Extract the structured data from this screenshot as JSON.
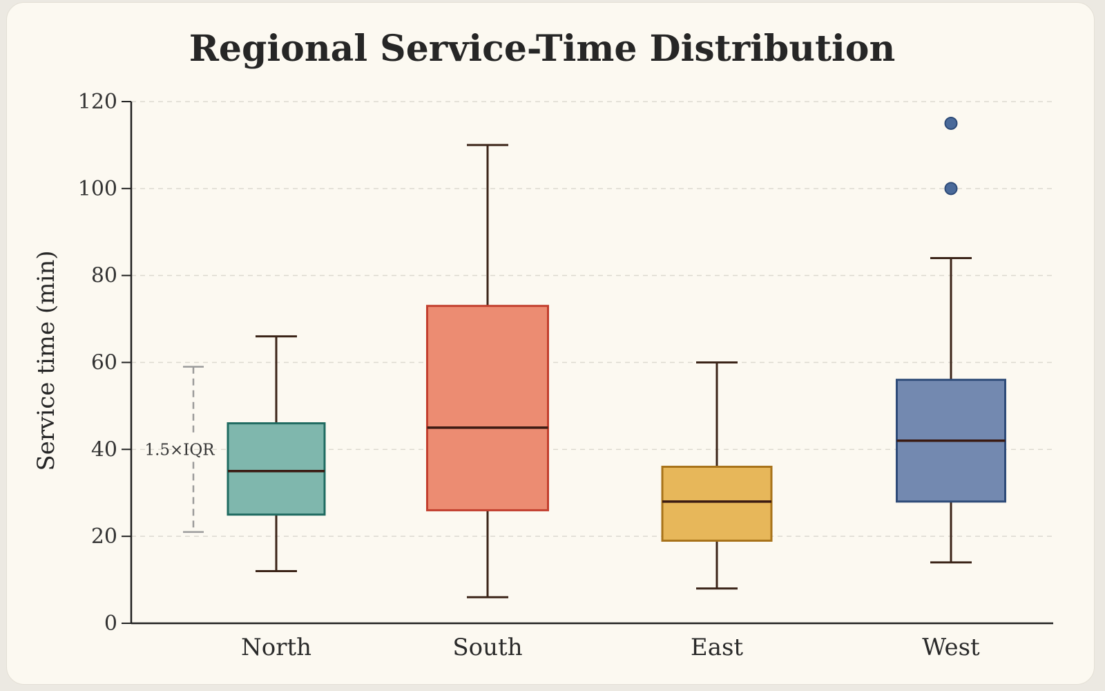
{
  "chart_data": {
    "type": "box",
    "title": "Regional Service-Time Distribution",
    "xlabel": "",
    "ylabel": "Service time (min)",
    "ylim": [
      0,
      120
    ],
    "yticks": [
      0,
      20,
      40,
      60,
      80,
      100,
      120
    ],
    "grid": true,
    "categories": [
      "North",
      "South",
      "East",
      "West"
    ],
    "boxes": [
      {
        "category": "North",
        "whisker_low": 12,
        "q1": 25,
        "median": 35,
        "q3": 46,
        "whisker_high": 66,
        "outliers": [],
        "fill": "#7fb7ad",
        "stroke": "#1f6b61"
      },
      {
        "category": "South",
        "whisker_low": 6,
        "q1": 26,
        "median": 45,
        "q3": 73,
        "whisker_high": 110,
        "outliers": [],
        "fill": "#ec8c72",
        "stroke": "#c23f2e"
      },
      {
        "category": "East",
        "whisker_low": 8,
        "q1": 19,
        "median": 28,
        "q3": 36,
        "whisker_high": 60,
        "outliers": [],
        "fill": "#e7b75a",
        "stroke": "#a8731a"
      },
      {
        "category": "West",
        "whisker_low": 14,
        "q1": 28,
        "median": 42,
        "q3": 56,
        "whisker_high": 84,
        "outliers": [
          100,
          115
        ],
        "fill": "#7389b0",
        "stroke": "#2e4b78"
      }
    ],
    "annotation": {
      "label": "1.5×IQR",
      "from": 21,
      "to": 59
    },
    "colors": {
      "axis": "#1f1f1f",
      "grid": "#dcd9d0",
      "median_line": "#3a1a12",
      "whisker": "#3b2418",
      "annotation": "#9a9a9a",
      "outlier": "#4a6a9a"
    }
  }
}
